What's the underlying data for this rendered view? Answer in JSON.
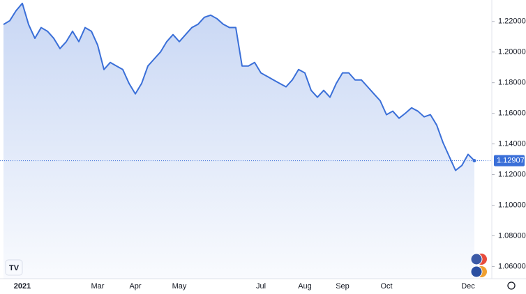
{
  "chart_data": {
    "type": "line",
    "categories": [
      null,
      null,
      null,
      "2021",
      null,
      null,
      null,
      null,
      null,
      null,
      null,
      null,
      null,
      null,
      null,
      "Mar",
      null,
      null,
      null,
      null,
      null,
      "Apr",
      null,
      null,
      null,
      null,
      null,
      null,
      "May",
      null,
      null,
      null,
      null,
      null,
      null,
      null,
      null,
      null,
      null,
      null,
      null,
      "Jul",
      null,
      null,
      null,
      null,
      null,
      null,
      "Aug",
      null,
      null,
      null,
      null,
      null,
      "Sep",
      null,
      null,
      null,
      null,
      null,
      null,
      "Oct",
      null,
      null,
      null,
      null,
      null,
      null,
      null,
      null,
      null,
      null,
      null,
      null,
      "Dec",
      null
    ],
    "series": [
      {
        "color": "#3a6fd8",
        "values": [
          1.218,
          1.2205,
          1.227,
          1.2318,
          1.218,
          1.209,
          1.216,
          1.2136,
          1.209,
          1.2023,
          1.2068,
          1.2136,
          1.2068,
          1.216,
          1.2136,
          1.2045,
          1.1886,
          1.1932,
          1.1909,
          1.1886,
          1.1795,
          1.1727,
          1.1795,
          1.1909,
          1.1955,
          1.2,
          1.2068,
          1.2114,
          1.2068,
          1.2114,
          1.216,
          1.2182,
          1.2227,
          1.2241,
          1.2218,
          1.2182,
          1.216,
          1.216,
          1.1909,
          1.1909,
          1.1932,
          1.1864,
          1.1841,
          1.1818,
          1.1795,
          1.1773,
          1.1818,
          1.1886,
          1.1864,
          1.175,
          1.1705,
          1.175,
          1.1705,
          1.1795,
          1.1864,
          1.1864,
          1.1818,
          1.1818,
          1.1773,
          1.1727,
          1.1682,
          1.1591,
          1.1614,
          1.1568,
          1.16,
          1.1636,
          1.1614,
          1.1577,
          1.1591,
          1.1523,
          1.1409,
          1.1318,
          1.1227,
          1.1259,
          1.1332,
          1.12907
        ]
      }
    ],
    "ylim": [
      1.052,
      1.234
    ],
    "yticks": [
      {
        "value": 1.06,
        "label": "1.06000"
      },
      {
        "value": 1.08,
        "label": "1.08000"
      },
      {
        "value": 1.1,
        "label": "1.10000"
      },
      {
        "value": 1.12,
        "label": "1.12000"
      },
      {
        "value": 1.14,
        "label": "1.14000"
      },
      {
        "value": 1.16,
        "label": "1.16000"
      },
      {
        "value": 1.18,
        "label": "1.18000"
      },
      {
        "value": 1.2,
        "label": "1.20000"
      },
      {
        "value": 1.22,
        "label": "1.22000"
      }
    ],
    "annotations": [
      {
        "text": "1.12907",
        "value": 1.12907
      }
    ]
  }
}
